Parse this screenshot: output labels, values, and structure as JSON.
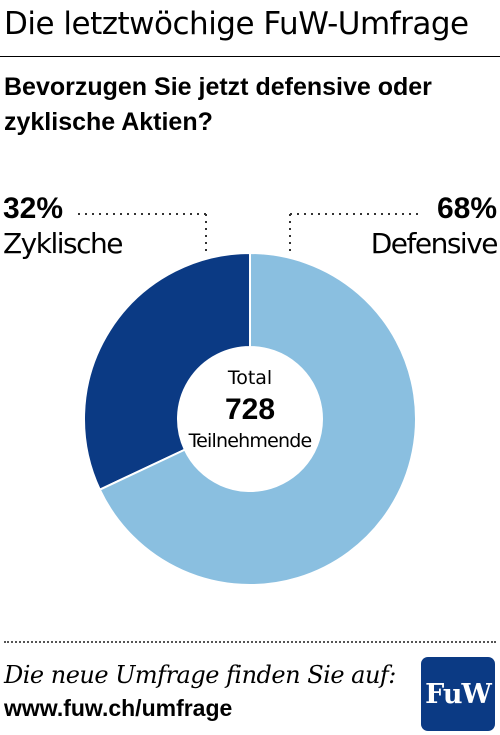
{
  "header": {
    "title": "Die letztwöchige FuW-Umfrage"
  },
  "chart_data": {
    "type": "pie",
    "variant": "donut",
    "title": "Bevorzugen Sie jetzt defensive oder zyklische Aktien?",
    "categories": [
      "Zyklische",
      "Defensive"
    ],
    "values": [
      32,
      68
    ],
    "value_labels": [
      "32%",
      "68%"
    ],
    "colors": [
      "#0b3a84",
      "#8abfe0"
    ],
    "center": {
      "top": "Total",
      "value": "728",
      "bottom": "Teilnehmende"
    }
  },
  "footer": {
    "line1": "Die neue Umfrage finden Sie auf:",
    "line2": "www.fuw.ch/umfrage",
    "logo_text": "FuW",
    "logo_color": "#0b3a84"
  }
}
